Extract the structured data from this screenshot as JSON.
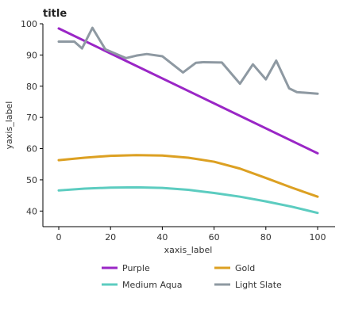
{
  "chart_data": {
    "type": "line",
    "title": "title",
    "xlabel": "xaxis_label",
    "ylabel": "yaxis_label",
    "xlim": [
      0,
      100
    ],
    "ylim": [
      35,
      100
    ],
    "xticks": [
      0,
      20,
      40,
      60,
      80,
      100
    ],
    "yticks": [
      40,
      50,
      60,
      70,
      80,
      90,
      100
    ],
    "grid": false,
    "legend_position": "bottom",
    "series": [
      {
        "name": "Purple",
        "color": "#9a26c6",
        "x": [
          0,
          100
        ],
        "y": [
          98.5,
          58.5
        ]
      },
      {
        "name": "Gold",
        "color": "#dca022",
        "x": [
          0,
          10,
          20,
          30,
          40,
          50,
          60,
          70,
          80,
          90,
          100
        ],
        "y": [
          56.3,
          57.1,
          57.7,
          57.9,
          57.8,
          57.1,
          55.8,
          53.6,
          50.6,
          47.5,
          44.6
        ]
      },
      {
        "name": "Medium Aqua",
        "color": "#5cccc0",
        "x": [
          0,
          10,
          20,
          30,
          40,
          50,
          60,
          70,
          80,
          90,
          100
        ],
        "y": [
          46.6,
          47.2,
          47.5,
          47.6,
          47.4,
          46.8,
          45.8,
          44.6,
          43.1,
          41.4,
          39.4
        ]
      },
      {
        "name": "Light Slate",
        "color": "#8e99a2",
        "x": [
          0,
          6,
          9,
          13,
          18,
          26,
          30,
          34,
          40,
          48,
          53,
          56,
          63,
          70,
          75,
          80,
          84,
          89,
          92,
          100
        ],
        "y": [
          94.3,
          94.3,
          92.1,
          98.7,
          91.8,
          89.0,
          89.8,
          90.3,
          89.6,
          84.4,
          87.5,
          87.7,
          87.6,
          80.8,
          87.0,
          82.2,
          88.2,
          79.3,
          78.1,
          77.6
        ]
      }
    ]
  }
}
